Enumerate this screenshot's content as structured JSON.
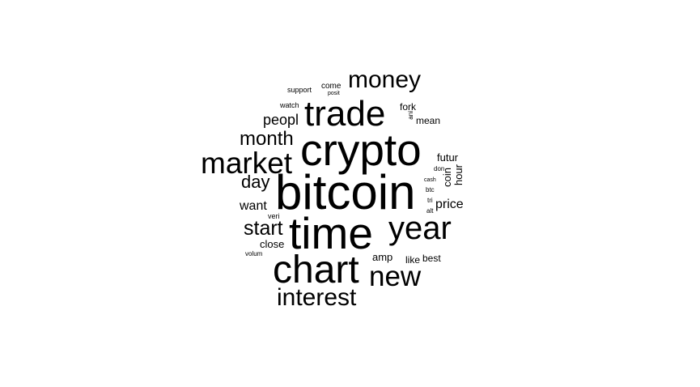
{
  "word_cloud": {
    "words": [
      "bitcoin",
      "crypto",
      "time",
      "chart",
      "trade",
      "market",
      "year",
      "new",
      "money",
      "interest",
      "month",
      "start",
      "day",
      "peopl",
      "want",
      "price",
      "futur",
      "close",
      "coin",
      "hour",
      "amp",
      "fork",
      "mean",
      "best",
      "like",
      "support",
      "come",
      "watch",
      "veri",
      "volum",
      "cash",
      "don",
      "btc",
      "tri",
      "alt",
      "posit",
      "ani"
    ]
  }
}
